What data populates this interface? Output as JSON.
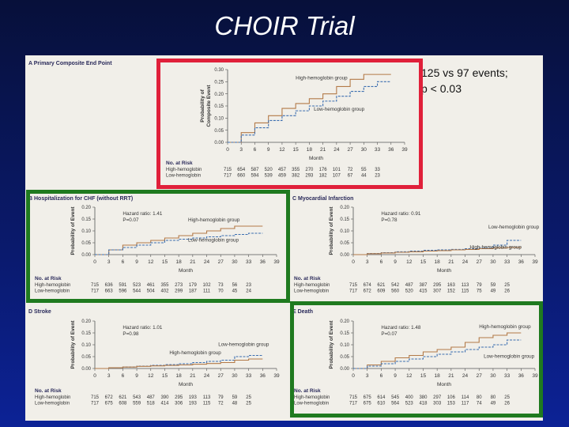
{
  "title": "CHOIR Trial",
  "note": {
    "line1": "125 vs 97 events;",
    "line2": "p < 0.03"
  },
  "colors": {
    "high": "#b37a48",
    "low": "#3d6fb0",
    "highlight_primary": "#e0203a",
    "highlight_secondary": "#1f7a1f"
  },
  "risk_label": "No. at Risk",
  "x_label": "Month",
  "chart_data": [
    {
      "id": "A",
      "type": "line",
      "panel_title": "A  Primary Composite End Point",
      "ylabel_lines": [
        "Probability of",
        "Composite Event"
      ],
      "xlabel": "Month",
      "xlim": [
        0,
        39
      ],
      "xticks": [
        0,
        3,
        6,
        9,
        12,
        15,
        18,
        21,
        24,
        27,
        30,
        33,
        36,
        39
      ],
      "ylim": [
        0,
        0.3
      ],
      "yticks": [
        "0.00",
        "0.05",
        "0.10",
        "0.15",
        "0.20",
        "0.25",
        "0.30"
      ],
      "series": [
        {
          "name": "High-hemoglobin group",
          "color": "#b37a48",
          "x": [
            0,
            3,
            6,
            9,
            12,
            15,
            18,
            21,
            24,
            27,
            30,
            33,
            36
          ],
          "y": [
            0,
            0.04,
            0.08,
            0.11,
            0.14,
            0.16,
            0.18,
            0.2,
            0.23,
            0.26,
            0.28,
            0.28,
            0.28
          ]
        },
        {
          "name": "Low-hemoglobin group",
          "color": "#3d6fb0",
          "x": [
            0,
            3,
            6,
            9,
            12,
            15,
            18,
            21,
            24,
            27,
            30,
            33,
            36
          ],
          "y": [
            0,
            0.03,
            0.06,
            0.09,
            0.11,
            0.13,
            0.15,
            0.17,
            0.19,
            0.21,
            0.23,
            0.25,
            0.25
          ]
        }
      ],
      "label_positions": [
        [
          15,
          0.26
        ],
        [
          19,
          0.13
        ]
      ],
      "stats": [],
      "risk": [
        {
          "label": "High-hemoglobin",
          "values": [
            "715",
            "654",
            "587",
            "520",
            "457",
            "355",
            "270",
            "176",
            "101",
            "72",
            "55",
            "33"
          ]
        },
        {
          "label": "Low-hemoglobin",
          "values": [
            "717",
            "660",
            "594",
            "539",
            "459",
            "382",
            "293",
            "182",
            "107",
            "67",
            "44",
            "23"
          ]
        }
      ]
    },
    {
      "id": "B",
      "type": "line",
      "panel_title": "B  Hospitalization for CHF (without RRT)",
      "ylabel_lines": [
        "Probability of Event"
      ],
      "xlabel": "Month",
      "xlim": [
        0,
        39
      ],
      "xticks": [
        0,
        3,
        6,
        9,
        12,
        15,
        18,
        21,
        24,
        27,
        30,
        33,
        36,
        39
      ],
      "ylim": [
        0,
        0.2
      ],
      "yticks": [
        "0.00",
        "0.05",
        "0.10",
        "0.15",
        "0.20"
      ],
      "series": [
        {
          "name": "High-hemoglobin group",
          "color": "#b37a48",
          "x": [
            0,
            3,
            6,
            9,
            12,
            15,
            18,
            21,
            24,
            27,
            30,
            33,
            36
          ],
          "y": [
            0,
            0.02,
            0.04,
            0.05,
            0.06,
            0.07,
            0.08,
            0.09,
            0.1,
            0.11,
            0.12,
            0.12,
            0.12
          ]
        },
        {
          "name": "Low-hemoglobin group",
          "color": "#3d6fb0",
          "x": [
            0,
            3,
            6,
            9,
            12,
            15,
            18,
            21,
            24,
            27,
            30,
            33,
            36
          ],
          "y": [
            0,
            0.02,
            0.03,
            0.04,
            0.05,
            0.06,
            0.065,
            0.07,
            0.075,
            0.08,
            0.085,
            0.09,
            0.09
          ]
        }
      ],
      "label_positions": [
        [
          20,
          0.14
        ],
        [
          20,
          0.055
        ]
      ],
      "stats": [
        "Hazard ratio: 1.41",
        "P=0.07"
      ],
      "risk": [
        {
          "label": "High-hemoglobin",
          "values": [
            "715",
            "636",
            "591",
            "523",
            "461",
            "355",
            "273",
            "179",
            "102",
            "73",
            "56",
            "23"
          ]
        },
        {
          "label": "Low-hemoglobin",
          "values": [
            "717",
            "663",
            "596",
            "544",
            "504",
            "402",
            "299",
            "187",
            "111",
            "70",
            "45",
            "24"
          ]
        }
      ]
    },
    {
      "id": "C",
      "type": "line",
      "panel_title": "C  Myocardial Infarction",
      "ylabel_lines": [
        "Probability of Event"
      ],
      "xlabel": "Month",
      "xlim": [
        0,
        39
      ],
      "xticks": [
        0,
        3,
        6,
        9,
        12,
        15,
        18,
        21,
        24,
        27,
        30,
        33,
        36,
        39
      ],
      "ylim": [
        0,
        0.2
      ],
      "yticks": [
        "0.00",
        "0.05",
        "0.10",
        "0.15",
        "0.20"
      ],
      "series": [
        {
          "name": "Low-hemoglobin group",
          "color": "#3d6fb0",
          "x": [
            0,
            3,
            6,
            9,
            12,
            15,
            18,
            21,
            24,
            27,
            30,
            33,
            36
          ],
          "y": [
            0,
            0.005,
            0.008,
            0.012,
            0.015,
            0.018,
            0.02,
            0.022,
            0.025,
            0.027,
            0.04,
            0.06,
            0.06
          ]
        },
        {
          "name": "High-hemoglobin group",
          "color": "#b37a48",
          "x": [
            0,
            3,
            6,
            9,
            12,
            15,
            18,
            21,
            24,
            27,
            30,
            33,
            36
          ],
          "y": [
            0,
            0.004,
            0.007,
            0.01,
            0.012,
            0.015,
            0.017,
            0.02,
            0.022,
            0.025,
            0.028,
            0.03,
            0.03
          ]
        }
      ],
      "label_positions": [
        [
          29,
          0.11
        ],
        [
          25,
          0.025
        ]
      ],
      "stats": [
        "Hazard ratio: 0.91",
        "P=0.78"
      ],
      "risk": [
        {
          "label": "High-hemoglobin",
          "values": [
            "715",
            "674",
            "621",
            "542",
            "487",
            "387",
            "295",
            "163",
            "113",
            "79",
            "59",
            "25"
          ]
        },
        {
          "label": "Low-hemoglobin",
          "values": [
            "717",
            "672",
            "609",
            "560",
            "520",
            "415",
            "307",
            "152",
            "115",
            "75",
            "49",
            "26"
          ]
        }
      ]
    },
    {
      "id": "D",
      "type": "line",
      "panel_title": "D  Stroke",
      "ylabel_lines": [
        "Probability of Event"
      ],
      "xlabel": "Month",
      "xlim": [
        0,
        39
      ],
      "xticks": [
        0,
        3,
        6,
        9,
        12,
        15,
        18,
        21,
        24,
        27,
        30,
        33,
        36,
        39
      ],
      "ylim": [
        0,
        0.2
      ],
      "yticks": [
        "0.00",
        "0.05",
        "0.10",
        "0.15",
        "0.20"
      ],
      "series": [
        {
          "name": "Low-hemoglobin group",
          "color": "#3d6fb0",
          "x": [
            0,
            3,
            6,
            9,
            12,
            15,
            18,
            21,
            24,
            27,
            30,
            33,
            36
          ],
          "y": [
            0,
            0.003,
            0.006,
            0.01,
            0.013,
            0.016,
            0.02,
            0.025,
            0.03,
            0.035,
            0.05,
            0.055,
            0.055
          ]
        },
        {
          "name": "High-hemoglobin group",
          "color": "#b37a48",
          "x": [
            0,
            3,
            6,
            9,
            12,
            15,
            18,
            21,
            24,
            27,
            30,
            33,
            36
          ],
          "y": [
            0,
            0.003,
            0.006,
            0.009,
            0.011,
            0.013,
            0.015,
            0.018,
            0.021,
            0.025,
            0.035,
            0.04,
            0.04
          ]
        }
      ],
      "label_positions": [
        [
          26.5,
          0.095
        ],
        [
          16,
          0.06
        ]
      ],
      "stats": [
        "Hazard ratio: 1.01",
        "P=0.98"
      ],
      "risk": [
        {
          "label": "High-hemoglobin",
          "values": [
            "715",
            "672",
            "621",
            "543",
            "487",
            "390",
            "295",
            "193",
            "113",
            "79",
            "59",
            "25"
          ]
        },
        {
          "label": "Low-hemoglobin",
          "values": [
            "717",
            "675",
            "608",
            "559",
            "518",
            "414",
            "306",
            "193",
            "115",
            "72",
            "48",
            "25"
          ]
        }
      ]
    },
    {
      "id": "E",
      "type": "line",
      "panel_title": "E  Death",
      "ylabel_lines": [
        "Probability of Event"
      ],
      "xlabel": "Month",
      "xlim": [
        0,
        39
      ],
      "xticks": [
        0,
        3,
        6,
        9,
        12,
        15,
        18,
        21,
        24,
        27,
        30,
        33,
        36,
        39
      ],
      "ylim": [
        0,
        0.2
      ],
      "yticks": [
        "0.00",
        "0.05",
        "0.10",
        "0.15",
        "0.20"
      ],
      "series": [
        {
          "name": "High-hemoglobin group",
          "color": "#b37a48",
          "x": [
            0,
            3,
            6,
            9,
            12,
            15,
            18,
            21,
            24,
            27,
            30,
            33,
            36
          ],
          "y": [
            0,
            0.015,
            0.03,
            0.045,
            0.055,
            0.07,
            0.08,
            0.09,
            0.11,
            0.13,
            0.14,
            0.15,
            0.15
          ]
        },
        {
          "name": "Low-hemoglobin group",
          "color": "#3d6fb0",
          "x": [
            0,
            3,
            6,
            9,
            12,
            15,
            18,
            21,
            24,
            27,
            30,
            33,
            36
          ],
          "y": [
            0,
            0.01,
            0.02,
            0.03,
            0.04,
            0.05,
            0.06,
            0.07,
            0.08,
            0.09,
            0.1,
            0.12,
            0.12
          ]
        }
      ],
      "label_positions": [
        [
          27,
          0.17
        ],
        [
          28,
          0.045
        ]
      ],
      "stats": [
        "Hazard ratio: 1.48",
        "P=0.07"
      ],
      "risk": [
        {
          "label": "High-hemoglobin",
          "values": [
            "715",
            "675",
            "614",
            "545",
            "400",
            "380",
            "297",
            "106",
            "114",
            "80",
            "80",
            "25"
          ]
        },
        {
          "label": "Low-hemoglobin",
          "values": [
            "717",
            "675",
            "610",
            "564",
            "523",
            "418",
            "303",
            "153",
            "117",
            "74",
            "49",
            "26"
          ]
        }
      ]
    }
  ]
}
